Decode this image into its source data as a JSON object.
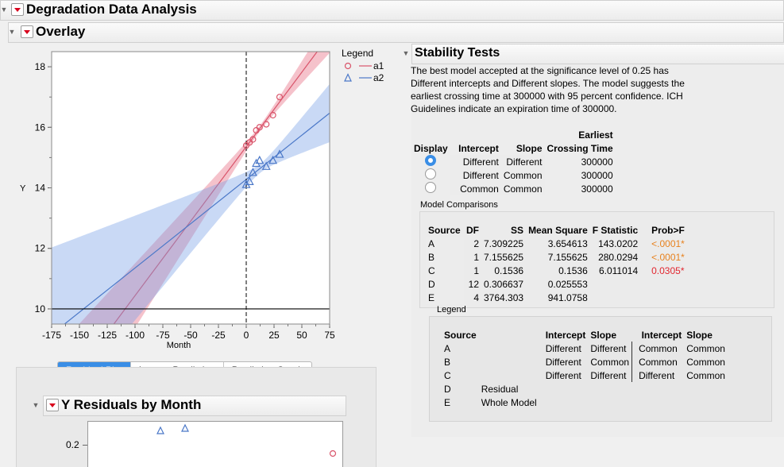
{
  "report": {
    "title": "Degradation Data Analysis"
  },
  "overlay": {
    "title": "Overlay"
  },
  "plot": {
    "xlabel": "Month",
    "ylabel": "Y",
    "xticks": [
      "-175",
      "-150",
      "-125",
      "-100",
      "-75",
      "-50",
      "-25",
      "0",
      "25",
      "50",
      "75"
    ],
    "yticks": [
      "10",
      "12",
      "14",
      "16",
      "18"
    ],
    "reference_y": 10
  },
  "chart_data": {
    "type": "scatter",
    "xlabel": "Month",
    "ylabel": "Y",
    "xlim": [
      -175,
      75
    ],
    "ylim": [
      9.5,
      18.5
    ],
    "series": [
      {
        "name": "a1",
        "marker": "circle",
        "color": "#d9546a",
        "points": [
          [
            0,
            15.4
          ],
          [
            3,
            15.5
          ],
          [
            6,
            15.6
          ],
          [
            9,
            15.9
          ],
          [
            12,
            16.0
          ],
          [
            18,
            16.1
          ],
          [
            24,
            16.4
          ],
          [
            30,
            17.0
          ]
        ]
      },
      {
        "name": "a2",
        "marker": "triangle",
        "color": "#4b78c8",
        "points": [
          [
            0,
            14.1
          ],
          [
            3,
            14.2
          ],
          [
            6,
            14.5
          ],
          [
            9,
            14.8
          ],
          [
            12,
            14.9
          ],
          [
            18,
            14.7
          ],
          [
            24,
            14.9
          ],
          [
            30,
            15.1
          ]
        ]
      }
    ]
  },
  "legend": {
    "title": "Legend",
    "items": [
      "a1",
      "a2"
    ]
  },
  "tabs": [
    "Residual Plot",
    "Inverse Prediction",
    "Prediction Graph"
  ],
  "residuals": {
    "title": "Y Residuals by Month",
    "ytick": "0.2"
  },
  "stability": {
    "title": "Stability Tests",
    "text": "The best model accepted at the significance level of 0.25 has Different intercepts and Different slopes. The model suggests the earliest crossing time at 300000 with 95 percent confidence. ICH Guidelines indicate an expiration time of 300000.",
    "headers": {
      "display": "Display",
      "intercept": "Intercept",
      "slope": "Slope",
      "earliest": "Earliest",
      "crossing": "Crossing Time"
    },
    "rows": [
      {
        "intercept": "Different",
        "slope": "Different",
        "time": "300000",
        "selected": true
      },
      {
        "intercept": "Different",
        "slope": "Common",
        "time": "300000",
        "selected": false
      },
      {
        "intercept": "Common",
        "slope": "Common",
        "time": "300000",
        "selected": false
      }
    ]
  },
  "model_comparisons": {
    "title": "Model Comparisons",
    "headers": [
      "Source",
      "DF",
      "SS",
      "Mean Square",
      "F Statistic",
      "Prob>F"
    ],
    "rows": [
      [
        "A",
        "2",
        "7.309225",
        "3.654613",
        "143.0202",
        "<.0001*"
      ],
      [
        "B",
        "1",
        "7.155625",
        "7.155625",
        "280.0294",
        "<.0001*"
      ],
      [
        "C",
        "1",
        "0.1536",
        "0.1536",
        "6.011014",
        "0.0305*"
      ],
      [
        "D",
        "12",
        "0.306637",
        "0.025553",
        "",
        ""
      ],
      [
        "E",
        "4",
        "3764.303",
        "941.0758",
        "",
        ""
      ]
    ],
    "prob_colors": [
      "#e8821e",
      "#e8821e",
      "#e2262f"
    ]
  },
  "legend2": {
    "title": "Legend",
    "headers": [
      "Source",
      "",
      "Intercept",
      "Slope",
      "Intercept",
      "Slope"
    ],
    "rows": [
      [
        "A",
        "",
        "Different",
        "Different",
        "Common",
        "Common"
      ],
      [
        "B",
        "",
        "Different",
        "Common",
        "Common",
        "Common"
      ],
      [
        "C",
        "",
        "Different",
        "Different",
        "Different",
        "Common"
      ],
      [
        "D",
        "Residual",
        "",
        "",
        "",
        ""
      ],
      [
        "E",
        "Whole Model",
        "",
        "",
        "",
        ""
      ]
    ]
  }
}
